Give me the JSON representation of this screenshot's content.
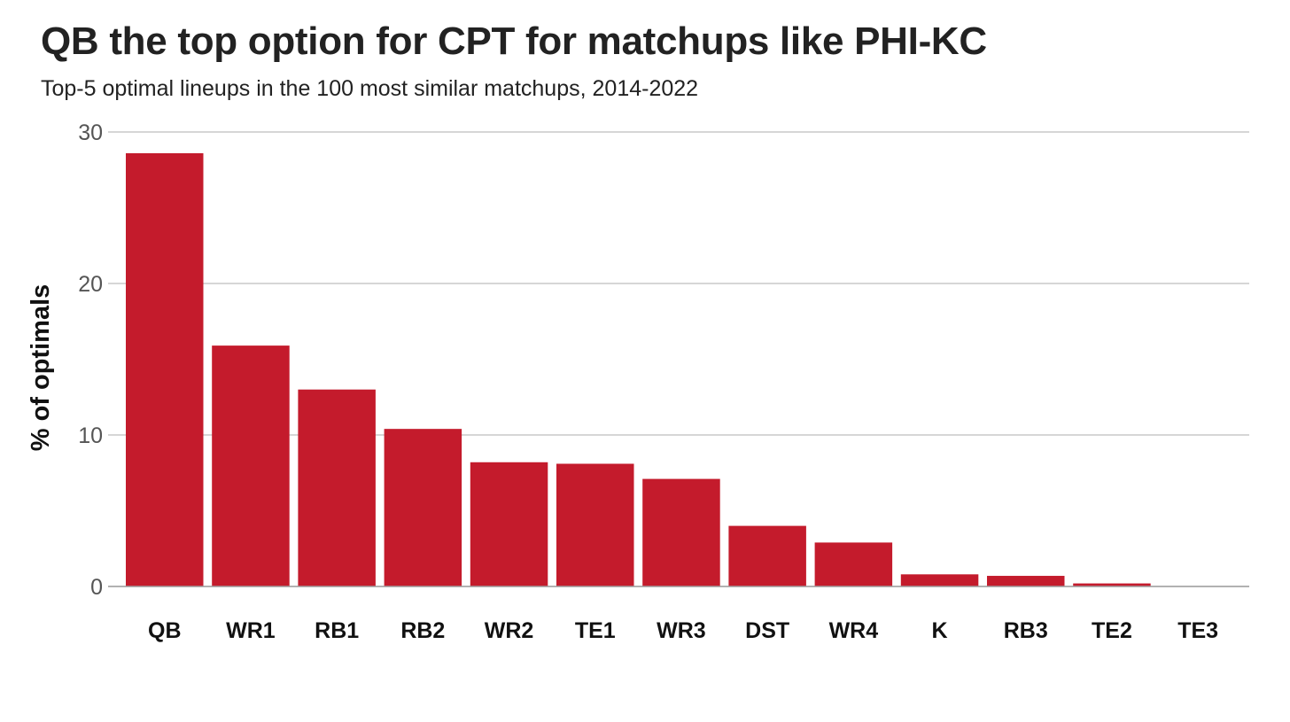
{
  "chart_data": {
    "type": "bar",
    "title": "QB the top option for CPT for matchups like PHI-KC",
    "subtitle": "Top-5 optimal lineups in the 100 most similar matchups, 2014-2022",
    "xlabel": "",
    "ylabel": "% of optimals",
    "categories": [
      "QB",
      "WR1",
      "RB1",
      "RB2",
      "WR2",
      "TE1",
      "WR3",
      "DST",
      "WR4",
      "K",
      "RB3",
      "TE2",
      "TE3"
    ],
    "values": [
      28.6,
      15.9,
      13.0,
      10.4,
      8.2,
      8.1,
      7.1,
      4.0,
      2.9,
      0.8,
      0.7,
      0.2,
      0.0
    ],
    "ylim": [
      0,
      30
    ],
    "yticks": [
      0,
      10,
      20,
      30
    ],
    "grid": true,
    "legend": "none",
    "bar_color": "#c41b2c",
    "gridline_color": "#bdbdbd"
  }
}
